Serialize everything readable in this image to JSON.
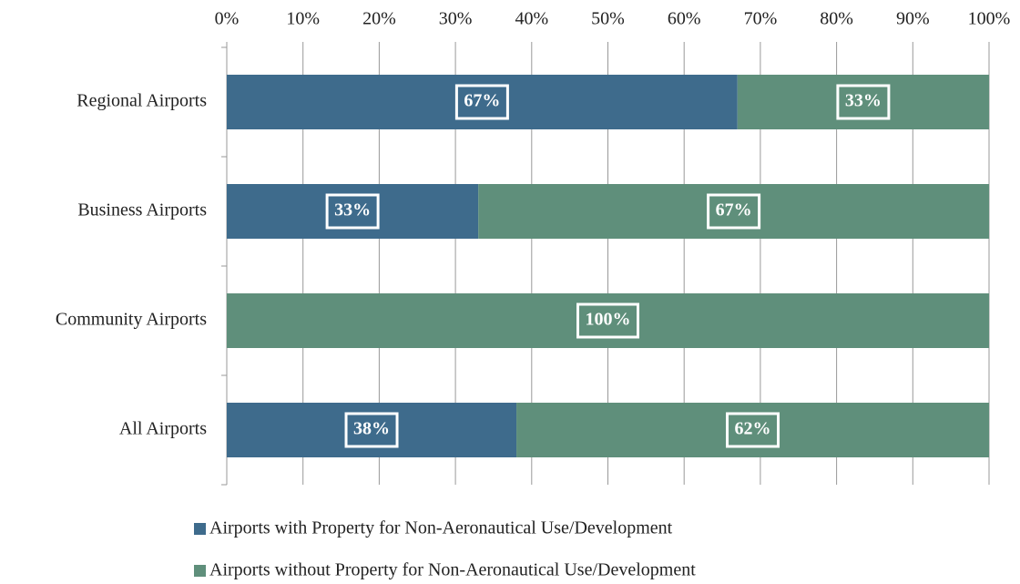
{
  "chart_data": {
    "type": "stacked-bar-horizontal",
    "categories": [
      "Regional Airports",
      "Business Airports",
      "Community Airports",
      "All Airports"
    ],
    "series": [
      {
        "name": "Airports with Property for Non-Aeronautical Use/Development",
        "color": "#3e6b8c",
        "values": [
          67,
          33,
          0,
          38
        ],
        "value_labels": [
          "67%",
          "33%",
          null,
          "38%"
        ]
      },
      {
        "name": "Airports without Property for Non-Aeronautical Use/Development",
        "color": "#5f8f7b",
        "values": [
          33,
          67,
          100,
          62
        ],
        "value_labels": [
          "33%",
          "67%",
          "100%",
          "62%"
        ]
      }
    ],
    "xlim": [
      0,
      100
    ],
    "xticks": [
      {
        "value": 0,
        "label": "0%"
      },
      {
        "value": 10,
        "label": "10%"
      },
      {
        "value": 20,
        "label": "20%"
      },
      {
        "value": 30,
        "label": "30%"
      },
      {
        "value": 40,
        "label": "40%"
      },
      {
        "value": 50,
        "label": "50%"
      },
      {
        "value": 60,
        "label": "60%"
      },
      {
        "value": 70,
        "label": "70%"
      },
      {
        "value": 80,
        "label": "80%"
      },
      {
        "value": 90,
        "label": "90%"
      },
      {
        "value": 100,
        "label": "100%"
      }
    ],
    "grid": true,
    "legend": "bottom"
  }
}
